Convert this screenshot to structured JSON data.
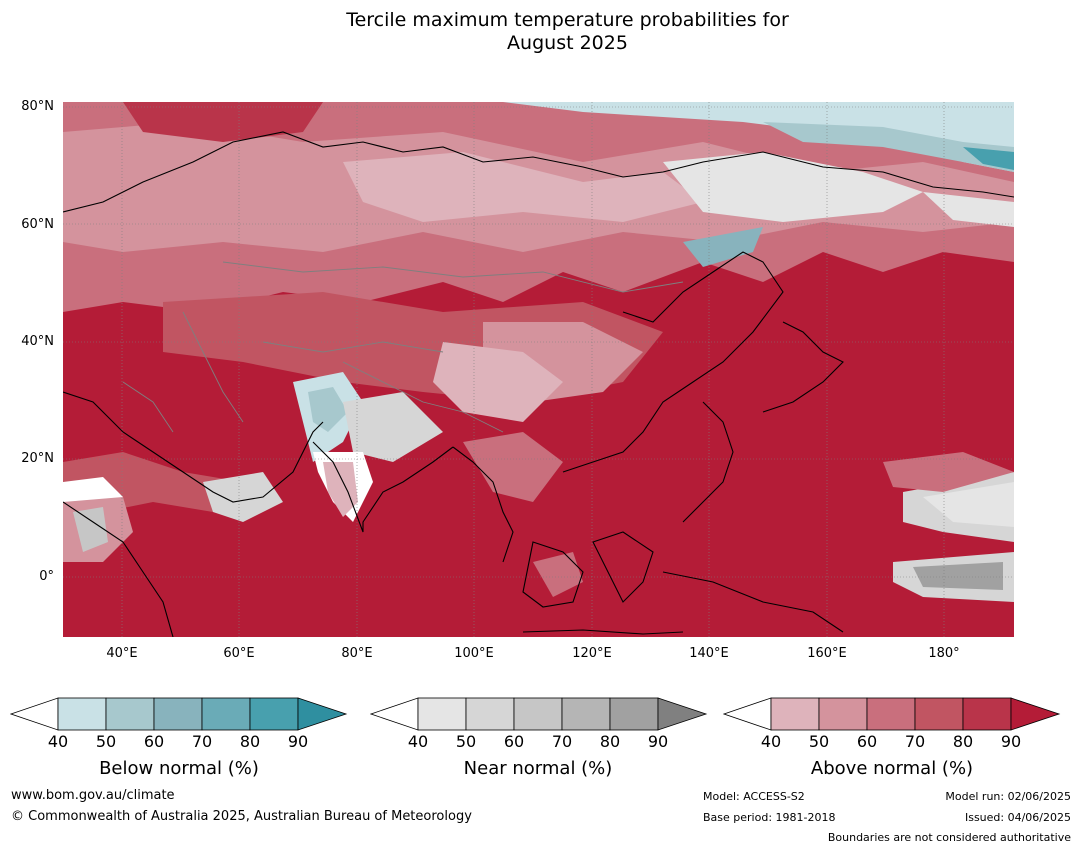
{
  "title_line1": "Tercile maximum temperature probabilities for",
  "title_line2": "August 2025",
  "map": {
    "lat_labels": [
      "80°N",
      "60°N",
      "40°N",
      "20°N",
      "0°"
    ],
    "lon_labels": [
      "40°E",
      "60°E",
      "80°E",
      "100°E",
      "120°E",
      "140°E",
      "160°E",
      "180°"
    ],
    "extent": {
      "lon_min": 30,
      "lon_max": 192,
      "lat_min": -10,
      "lat_max": 81
    },
    "colors": {
      "above_max": "#b41c37",
      "ocean_above": "#b41c37",
      "coastline": "#000000",
      "boundaries": "#7f7f7f",
      "grid": "#7f7f7f"
    }
  },
  "colorbars": [
    {
      "title": "Below normal (%)",
      "ticks": [
        "40",
        "50",
        "60",
        "70",
        "80",
        "90"
      ],
      "colors": [
        "#ffffff",
        "#c9e1e6",
        "#a7c8cd",
        "#88b3bd",
        "#6aabb7",
        "#48a0ae",
        "#2f8fa0"
      ]
    },
    {
      "title": "Near normal (%)",
      "ticks": [
        "40",
        "50",
        "60",
        "70",
        "80",
        "90"
      ],
      "colors": [
        "#ffffff",
        "#e5e5e5",
        "#d6d6d6",
        "#c6c6c6",
        "#b5b5b5",
        "#a1a1a1",
        "#808080"
      ]
    },
    {
      "title": "Above normal (%)",
      "ticks": [
        "40",
        "50",
        "60",
        "70",
        "80",
        "90"
      ],
      "colors": [
        "#ffffff",
        "#deb3bb",
        "#d4939d",
        "#c96f7d",
        "#c15562",
        "#b9344a",
        "#b41c37"
      ]
    }
  ],
  "footer": {
    "url": "www.bom.gov.au/climate",
    "copyright": "© Commonwealth of Australia 2025, Australian Bureau of Meteorology",
    "model": "Model: ACCESS-S2",
    "base_period": "Base period: 1981-2018",
    "model_run": "Model run: 02/06/2025",
    "issued": "Issued: 04/06/2025",
    "disclaimer": "Boundaries are not considered authoritative"
  }
}
